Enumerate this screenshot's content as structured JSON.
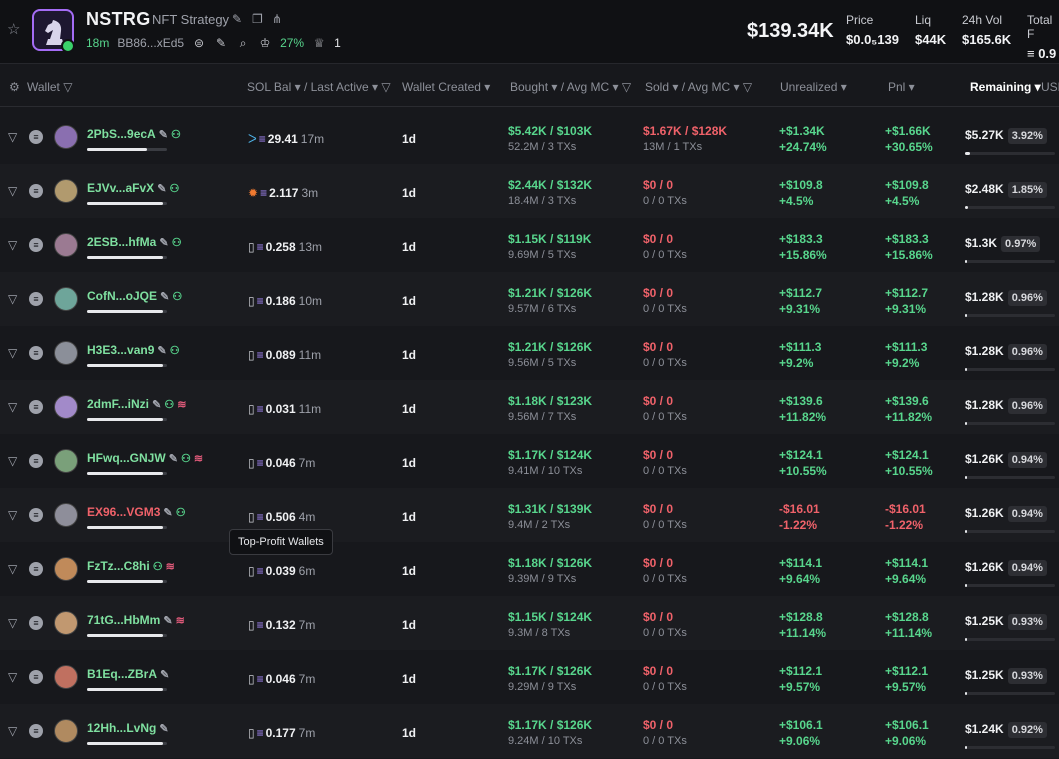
{
  "token": {
    "symbol": "NSTRG",
    "name": "NFT Strategy",
    "age": "18m",
    "address": "BB86...xEd5",
    "top10_pct": "27%",
    "badge_count": "1",
    "market_cap": "$139.34K"
  },
  "stats": [
    {
      "label": "Price",
      "value": "$0.0₅139"
    },
    {
      "label": "Liq",
      "value": "$44K"
    },
    {
      "label": "24h Vol",
      "value": "$165.6K"
    },
    {
      "label": "Total F",
      "value": "≡ 0.9"
    }
  ],
  "columns": {
    "wallet": "Wallet",
    "sol_bal": "SOL Bal",
    "last_active": "/ Last Active",
    "wallet_created": "Wallet Created",
    "bought": "Bought",
    "avg_mc_b": "/ Avg MC",
    "sold": "Sold",
    "avg_mc_s": "/ Avg MC",
    "unrealized": "Unrealized",
    "pnl": "Pnl",
    "remaining": "Remaining",
    "usd": "USD"
  },
  "tooltip": "Top-Profit Wallets",
  "rows": [
    {
      "wallet": "2PbS...9ecA",
      "red": false,
      "bar": 0.75,
      "pre": "",
      "sol": "29.41",
      "active": "17m",
      "created": "1d",
      "bought": "$5.42K / $103K",
      "bought_sub": "52.2M / 3 TXs",
      "sold": "$1.67K / $128K",
      "sold_sub": "13M / 1 TXs",
      "sold_pink": true,
      "unreal": "+$1.34K",
      "unreal_pct": "+24.74%",
      "pnl": "+$1.66K",
      "pnl_pct": "+30.65%",
      "remaining": "$5.27K",
      "rem_pct": "3.92%",
      "rem_bar": 0.06
    },
    {
      "wallet": "EJVv...aFvX",
      "red": false,
      "bar": 0.95,
      "pre": "",
      "sol": "2.117",
      "active": "3m",
      "created": "1d",
      "bought": "$2.44K / $132K",
      "bought_sub": "18.4M / 3 TXs",
      "sold": "$0 / 0",
      "sold_sub": "0 / 0 TXs",
      "sold_pink": true,
      "unreal": "+$109.8",
      "unreal_pct": "+4.5%",
      "pnl": "+$109.8",
      "pnl_pct": "+4.5%",
      "remaining": "$2.48K",
      "rem_pct": "1.85%",
      "rem_bar": 0.03
    },
    {
      "wallet": "2ESB...hfMa",
      "red": false,
      "bar": 0.95,
      "pre": "▯",
      "sol": "0.258",
      "active": "13m",
      "created": "1d",
      "bought": "$1.15K / $119K",
      "bought_sub": "9.69M / 5 TXs",
      "sold": "$0 / 0",
      "sold_sub": "0 / 0 TXs",
      "sold_pink": true,
      "unreal": "+$183.3",
      "unreal_pct": "+15.86%",
      "pnl": "+$183.3",
      "pnl_pct": "+15.86%",
      "remaining": "$1.3K",
      "rem_pct": "0.97%",
      "rem_bar": 0.02
    },
    {
      "wallet": "CofN...oJQE",
      "red": false,
      "bar": 0.95,
      "pre": "▯",
      "sol": "0.186",
      "active": "10m",
      "created": "1d",
      "bought": "$1.21K / $126K",
      "bought_sub": "9.57M / 6 TXs",
      "sold": "$0 / 0",
      "sold_sub": "0 / 0 TXs",
      "sold_pink": true,
      "unreal": "+$112.7",
      "unreal_pct": "+9.31%",
      "pnl": "+$112.7",
      "pnl_pct": "+9.31%",
      "remaining": "$1.28K",
      "rem_pct": "0.96%",
      "rem_bar": 0.02
    },
    {
      "wallet": "H3E3...van9",
      "red": false,
      "bar": 0.95,
      "pre": "▯",
      "sol": "0.089",
      "active": "11m",
      "created": "1d",
      "bought": "$1.21K / $126K",
      "bought_sub": "9.56M / 5 TXs",
      "sold": "$0 / 0",
      "sold_sub": "0 / 0 TXs",
      "sold_pink": true,
      "unreal": "+$111.3",
      "unreal_pct": "+9.2%",
      "pnl": "+$111.3",
      "pnl_pct": "+9.2%",
      "remaining": "$1.28K",
      "rem_pct": "0.96%",
      "rem_bar": 0.02
    },
    {
      "wallet": "2dmF...iNzi",
      "red": false,
      "bar": 0.95,
      "pre": "▯",
      "sol": "0.031",
      "active": "11m",
      "created": "1d",
      "bought": "$1.18K / $123K",
      "bought_sub": "9.56M / 7 TXs",
      "sold": "$0 / 0",
      "sold_sub": "0 / 0 TXs",
      "sold_pink": true,
      "unreal": "+$139.6",
      "unreal_pct": "+11.82%",
      "pnl": "+$139.6",
      "pnl_pct": "+11.82%",
      "remaining": "$1.28K",
      "rem_pct": "0.96%",
      "rem_bar": 0.02
    },
    {
      "wallet": "HFwq...GNJW",
      "red": false,
      "bar": 0.95,
      "pre": "▯",
      "sol": "0.046",
      "active": "7m",
      "created": "1d",
      "bought": "$1.17K / $124K",
      "bought_sub": "9.41M / 10 TXs",
      "sold": "$0 / 0",
      "sold_sub": "0 / 0 TXs",
      "sold_pink": true,
      "unreal": "+$124.1",
      "unreal_pct": "+10.55%",
      "pnl": "+$124.1",
      "pnl_pct": "+10.55%",
      "remaining": "$1.26K",
      "rem_pct": "0.94%",
      "rem_bar": 0.02
    },
    {
      "wallet": "EX96...VGM3",
      "red": true,
      "bar": 0.95,
      "pre": "▯",
      "sol": "0.506",
      "active": "4m",
      "created": "1d",
      "bought": "$1.31K / $139K",
      "bought_sub": "9.4M / 2 TXs",
      "sold": "$0 / 0",
      "sold_sub": "0 / 0 TXs",
      "sold_pink": true,
      "unreal": "-$16.01",
      "unreal_pct": "-1.22%",
      "pnl": "-$16.01",
      "pnl_pct": "-1.22%",
      "remaining": "$1.26K",
      "rem_pct": "0.94%",
      "rem_bar": 0.02
    },
    {
      "wallet": "FzTz...C8hi",
      "red": false,
      "bar": 0.95,
      "pre": "▯",
      "sol": "0.039",
      "active": "6m",
      "created": "1d",
      "bought": "$1.18K / $126K",
      "bought_sub": "9.39M / 9 TXs",
      "sold": "$0 / 0",
      "sold_sub": "0 / 0 TXs",
      "sold_pink": true,
      "unreal": "+$114.1",
      "unreal_pct": "+9.64%",
      "pnl": "+$114.1",
      "pnl_pct": "+9.64%",
      "remaining": "$1.26K",
      "rem_pct": "0.94%",
      "rem_bar": 0.02
    },
    {
      "wallet": "71tG...HbMm",
      "red": false,
      "bar": 0.95,
      "pre": "▯",
      "sol": "0.132",
      "active": "7m",
      "created": "1d",
      "bought": "$1.15K / $124K",
      "bought_sub": "9.3M / 8 TXs",
      "sold": "$0 / 0",
      "sold_sub": "0 / 0 TXs",
      "sold_pink": true,
      "unreal": "+$128.8",
      "unreal_pct": "+11.14%",
      "pnl": "+$128.8",
      "pnl_pct": "+11.14%",
      "remaining": "$1.25K",
      "rem_pct": "0.93%",
      "rem_bar": 0.02
    },
    {
      "wallet": "B1Eq...ZBrA",
      "red": false,
      "bar": 0.95,
      "pre": "▯",
      "sol": "0.046",
      "active": "7m",
      "created": "1d",
      "bought": "$1.17K / $126K",
      "bought_sub": "9.29M / 9 TXs",
      "sold": "$0 / 0",
      "sold_sub": "0 / 0 TXs",
      "sold_pink": true,
      "unreal": "+$112.1",
      "unreal_pct": "+9.57%",
      "pnl": "+$112.1",
      "pnl_pct": "+9.57%",
      "remaining": "$1.25K",
      "rem_pct": "0.93%",
      "rem_bar": 0.02
    },
    {
      "wallet": "12Hh...LvNg",
      "red": false,
      "bar": 0.95,
      "pre": "▯",
      "sol": "0.177",
      "active": "7m",
      "created": "1d",
      "bought": "$1.17K / $126K",
      "bought_sub": "9.24M / 10 TXs",
      "sold": "$0 / 0",
      "sold_sub": "0 / 0 TXs",
      "sold_pink": true,
      "unreal": "+$106.1",
      "unreal_pct": "+9.06%",
      "pnl": "+$106.1",
      "pnl_pct": "+9.06%",
      "remaining": "$1.24K",
      "rem_pct": "0.92%",
      "rem_bar": 0.02
    }
  ]
}
